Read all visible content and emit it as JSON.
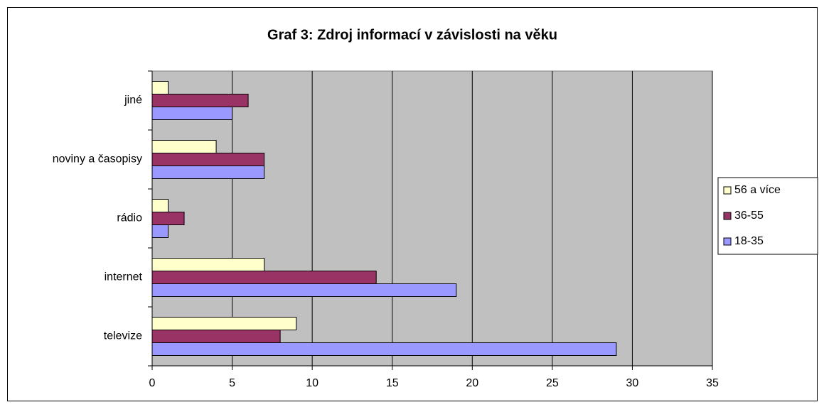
{
  "chart_data": {
    "type": "hbar",
    "title": "Graf 3: Zdroj informací v závislosti na věku",
    "categories": [
      "televize",
      "internet",
      "rádio",
      "noviny a časopisy",
      "jiné"
    ],
    "series": [
      {
        "name": "18-35",
        "color": "#9999ff",
        "values": [
          29,
          19,
          1,
          7,
          5
        ]
      },
      {
        "name": "36-55",
        "color": "#993366",
        "values": [
          8,
          14,
          2,
          7,
          6
        ]
      },
      {
        "name": "56 a více",
        "color": "#ffffcc",
        "values": [
          9,
          7,
          1,
          4,
          1
        ]
      }
    ],
    "xlim": [
      0,
      35
    ],
    "xticks": [
      0,
      5,
      10,
      15,
      20,
      25,
      30,
      35
    ],
    "grid": true,
    "legend": "right",
    "plot_background": "#c0c0c0"
  }
}
